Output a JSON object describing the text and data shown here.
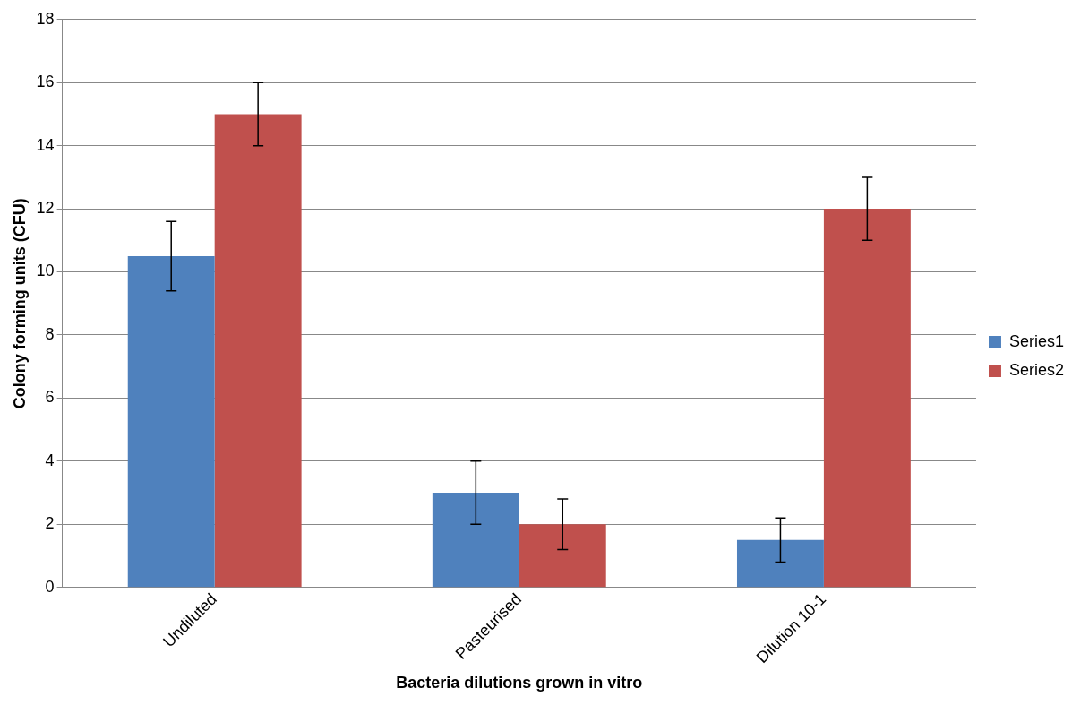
{
  "chart_data": {
    "type": "bar",
    "xlabel": "Bacteria dilutions grown in vitro",
    "ylabel": "Colony forming units (CFU)",
    "categories": [
      "Undiluted",
      "Pasteurised",
      "Dilution 10-1"
    ],
    "series": [
      {
        "name": "Series1",
        "color": "#4f81bd",
        "values": [
          10.5,
          3,
          1.5
        ],
        "errors": [
          1.1,
          1,
          0.7
        ]
      },
      {
        "name": "Series2",
        "color": "#c0504d",
        "values": [
          15,
          2,
          12
        ],
        "errors": [
          1,
          0.8,
          1
        ]
      }
    ],
    "ylim": [
      0,
      18
    ],
    "yticks": [
      0,
      2,
      4,
      6,
      8,
      10,
      12,
      14,
      16,
      18
    ],
    "grid": "y",
    "legend": "right"
  }
}
